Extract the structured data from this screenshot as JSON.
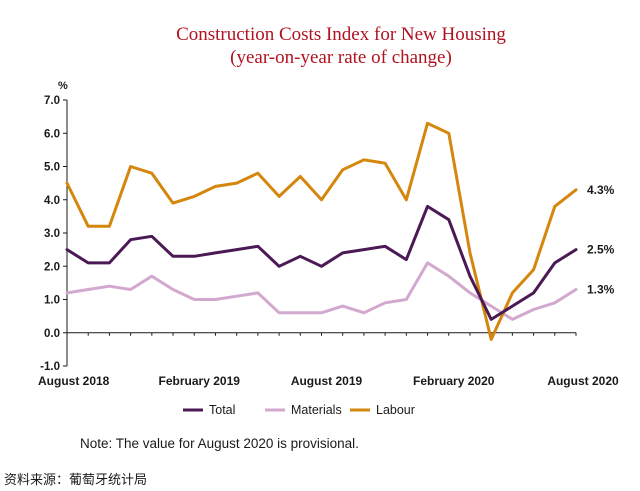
{
  "chart_data": {
    "type": "line",
    "title": "Construction Costs Index for New Housing",
    "subtitle": "(year-on-year rate of change)",
    "ylabel": "%",
    "ylim": [
      -1.0,
      7.0
    ],
    "yticks": [
      "7.0",
      "6.0",
      "5.0",
      "4.0",
      "3.0",
      "2.0",
      "1.0",
      "0.0",
      "-1.0"
    ],
    "ytick_values": [
      7,
      6,
      5,
      4,
      3,
      2,
      1,
      0,
      -1
    ],
    "x": [
      "Aug 2018",
      "Sep 2018",
      "Oct 2018",
      "Nov 2018",
      "Dec 2018",
      "Jan 2019",
      "Feb 2019",
      "Mar 2019",
      "Apr 2019",
      "May 2019",
      "Jun 2019",
      "Jul 2019",
      "Aug 2019",
      "Sep 2019",
      "Oct 2019",
      "Nov 2019",
      "Dec 2019",
      "Jan 2020",
      "Feb 2020",
      "Mar 2020",
      "Apr 2020",
      "May 2020",
      "Jun 2020",
      "Jul 2020",
      "Aug 2020"
    ],
    "xtick_labels": [
      {
        "index": 0,
        "label": "August 2018"
      },
      {
        "index": 6,
        "label": "February 2019"
      },
      {
        "index": 12,
        "label": "August 2019"
      },
      {
        "index": 18,
        "label": "February 2020"
      },
      {
        "index": 24,
        "label": "August 2020"
      }
    ],
    "series": [
      {
        "name": "Total",
        "color": "#4b1a55",
        "values": [
          2.5,
          2.1,
          2.1,
          2.8,
          2.9,
          2.3,
          2.3,
          2.4,
          2.5,
          2.6,
          2.0,
          2.3,
          2.0,
          2.4,
          2.5,
          2.6,
          2.2,
          3.8,
          3.4,
          1.7,
          0.4,
          0.8,
          1.2,
          2.1,
          2.5
        ],
        "end_label": "2.5%"
      },
      {
        "name": "Materials",
        "color": "#d2a8cf",
        "values": [
          1.2,
          1.3,
          1.4,
          1.3,
          1.7,
          1.3,
          1.0,
          1.0,
          1.1,
          1.2,
          0.6,
          0.6,
          0.6,
          0.8,
          0.6,
          0.9,
          1.0,
          2.1,
          1.7,
          1.2,
          0.8,
          0.4,
          0.7,
          0.9,
          1.3
        ],
        "end_label": "1.3%"
      },
      {
        "name": "Labour",
        "color": "#d4860d",
        "values": [
          4.5,
          3.2,
          3.2,
          5.0,
          4.8,
          3.9,
          4.1,
          4.4,
          4.5,
          4.8,
          4.1,
          4.7,
          4.0,
          4.9,
          5.2,
          5.1,
          4.0,
          6.3,
          6.0,
          2.4,
          -0.2,
          1.2,
          1.9,
          3.8,
          4.3
        ],
        "end_label": "4.3%"
      }
    ],
    "legend_position": "bottom",
    "grid": false
  },
  "note": "Note: The value for August 2020 is provisional.",
  "source": "资料来源：葡萄牙统计局"
}
